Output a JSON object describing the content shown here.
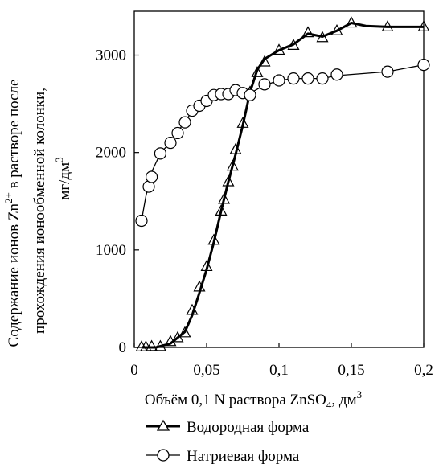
{
  "chart_data": {
    "type": "line",
    "xlabel": "Объём 0,1 N раствора ZnSO",
    "xlabel_sub": "4",
    "xlabel_unit": ", дм",
    "xlabel_sup": "3",
    "ylabel_line1_pre": "Содержание ионов Zn",
    "ylabel_line1_sup": "2+",
    "ylabel_line1_post": " в растворе после",
    "ylabel_line2": "прохождения ионообменной колонки,",
    "ylabel_line3_pre": "мг/дм",
    "ylabel_line3_sup": "3",
    "xlim": [
      0,
      0.2
    ],
    "ylim": [
      0,
      3450
    ],
    "x_ticks": [
      0,
      0.05,
      0.1,
      0.15,
      0.2
    ],
    "x_tick_labels": [
      "0",
      "0,05",
      "0,1",
      "0,15",
      "0,2"
    ],
    "y_ticks": [
      0,
      1000,
      2000,
      3000
    ],
    "y_tick_labels": [
      "0",
      "1000",
      "2000",
      "3000"
    ],
    "grid": false,
    "legend_position": "bottom",
    "series": [
      {
        "name": "Водородная форма",
        "marker": "triangle",
        "points": [
          [
            0.005,
            5
          ],
          [
            0.008,
            5
          ],
          [
            0.012,
            10
          ],
          [
            0.018,
            10
          ],
          [
            0.025,
            60
          ],
          [
            0.03,
            100
          ],
          [
            0.035,
            150
          ],
          [
            0.04,
            380
          ],
          [
            0.045,
            620
          ],
          [
            0.05,
            830
          ],
          [
            0.055,
            1100
          ],
          [
            0.06,
            1400
          ],
          [
            0.062,
            1520
          ],
          [
            0.065,
            1700
          ],
          [
            0.068,
            1860
          ],
          [
            0.07,
            2030
          ],
          [
            0.075,
            2300
          ],
          [
            0.08,
            2620
          ],
          [
            0.085,
            2820
          ],
          [
            0.09,
            2930
          ],
          [
            0.1,
            3050
          ],
          [
            0.11,
            3100
          ],
          [
            0.12,
            3230
          ],
          [
            0.13,
            3180
          ],
          [
            0.14,
            3250
          ],
          [
            0.15,
            3330
          ],
          [
            0.175,
            3290
          ],
          [
            0.2,
            3290
          ]
        ],
        "curve": [
          [
            0.005,
            0
          ],
          [
            0.015,
            0
          ],
          [
            0.025,
            40
          ],
          [
            0.035,
            160
          ],
          [
            0.04,
            330
          ],
          [
            0.045,
            560
          ],
          [
            0.05,
            800
          ],
          [
            0.055,
            1080
          ],
          [
            0.06,
            1400
          ],
          [
            0.065,
            1700
          ],
          [
            0.07,
            1980
          ],
          [
            0.075,
            2280
          ],
          [
            0.08,
            2620
          ],
          [
            0.085,
            2850
          ],
          [
            0.09,
            2960
          ],
          [
            0.1,
            3050
          ],
          [
            0.11,
            3110
          ],
          [
            0.12,
            3220
          ],
          [
            0.13,
            3190
          ],
          [
            0.14,
            3250
          ],
          [
            0.15,
            3330
          ],
          [
            0.16,
            3300
          ],
          [
            0.175,
            3290
          ],
          [
            0.2,
            3290
          ]
        ]
      },
      {
        "name": "Натриевая форма",
        "marker": "circle",
        "points": [
          [
            0.005,
            1300
          ],
          [
            0.01,
            1650
          ],
          [
            0.012,
            1750
          ],
          [
            0.018,
            1990
          ],
          [
            0.025,
            2100
          ],
          [
            0.03,
            2200
          ],
          [
            0.035,
            2310
          ],
          [
            0.04,
            2430
          ],
          [
            0.045,
            2480
          ],
          [
            0.05,
            2530
          ],
          [
            0.055,
            2590
          ],
          [
            0.06,
            2600
          ],
          [
            0.065,
            2600
          ],
          [
            0.07,
            2640
          ],
          [
            0.075,
            2610
          ],
          [
            0.08,
            2590
          ],
          [
            0.09,
            2700
          ],
          [
            0.1,
            2740
          ],
          [
            0.11,
            2760
          ],
          [
            0.12,
            2760
          ],
          [
            0.13,
            2760
          ],
          [
            0.14,
            2800
          ],
          [
            0.175,
            2830
          ],
          [
            0.2,
            2900
          ]
        ],
        "curve": [
          [
            0.005,
            1300
          ],
          [
            0.008,
            1550
          ],
          [
            0.012,
            1800
          ],
          [
            0.018,
            1990
          ],
          [
            0.025,
            2110
          ],
          [
            0.03,
            2210
          ],
          [
            0.035,
            2320
          ],
          [
            0.04,
            2420
          ],
          [
            0.05,
            2520
          ],
          [
            0.06,
            2600
          ],
          [
            0.07,
            2620
          ],
          [
            0.08,
            2610
          ],
          [
            0.09,
            2690
          ],
          [
            0.1,
            2740
          ],
          [
            0.11,
            2760
          ],
          [
            0.13,
            2760
          ],
          [
            0.14,
            2790
          ],
          [
            0.175,
            2830
          ],
          [
            0.2,
            2900
          ]
        ]
      }
    ]
  }
}
